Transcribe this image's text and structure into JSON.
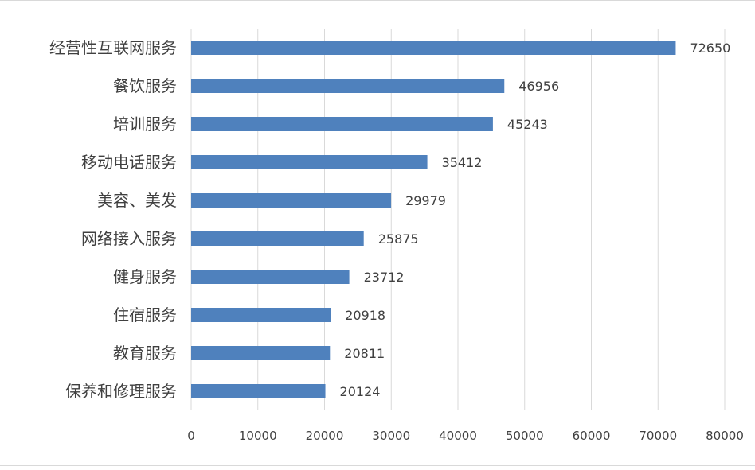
{
  "chart_data": {
    "type": "bar",
    "orientation": "horizontal",
    "title": "",
    "xlabel": "",
    "ylabel": "",
    "categories": [
      "经营性互联网服务",
      "餐饮服务",
      "培训服务",
      "移动电话服务",
      "美容、美发",
      "网络接入服务",
      "健身服务",
      "住宿服务",
      "教育服务",
      "保养和修理服务"
    ],
    "values": [
      72650,
      46956,
      45243,
      35412,
      29979,
      25875,
      23712,
      20918,
      20811,
      20124
    ],
    "xlim": [
      0,
      80000
    ],
    "xticks": [
      "0",
      "10000",
      "20000",
      "30000",
      "40000",
      "50000",
      "60000",
      "70000",
      "80000"
    ],
    "grid": true,
    "legend": "none",
    "bar_color": "#4f81bd",
    "grid_color": "#d9d9d9",
    "label_color": "#404040"
  }
}
